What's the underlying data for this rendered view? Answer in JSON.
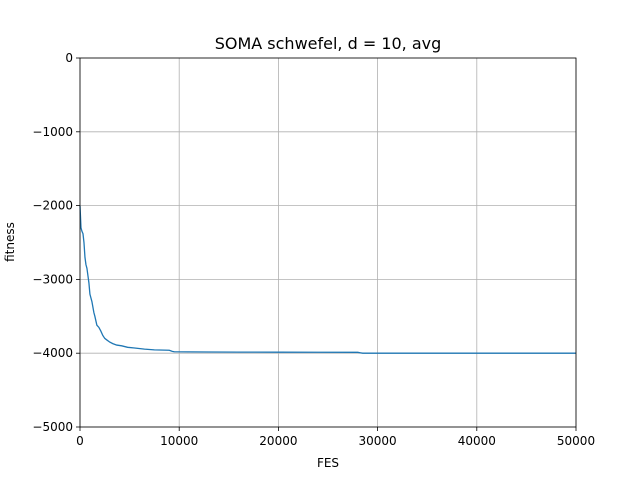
{
  "chart_data": {
    "type": "line",
    "title": "SOMA schwefel, d = 10, avg",
    "xlabel": "FES",
    "ylabel": "fitness",
    "xlim": [
      0,
      50000
    ],
    "ylim": [
      -5000,
      0
    ],
    "xticks": [
      0,
      10000,
      20000,
      30000,
      40000,
      50000
    ],
    "xtick_labels": [
      "0",
      "10000",
      "20000",
      "30000",
      "40000",
      "50000"
    ],
    "yticks": [
      0,
      -1000,
      -2000,
      -3000,
      -4000,
      -5000
    ],
    "ytick_labels": [
      "0",
      "−1000",
      "−2000",
      "−3000",
      "−4000",
      "−5000"
    ],
    "grid": true,
    "color": "#1f77b4",
    "series": [
      {
        "x": [
          0,
          100,
          200,
          300,
          400,
          500,
          600,
          700,
          800,
          900,
          1000,
          1200,
          1400,
          1500,
          1700,
          1900,
          2100,
          2300,
          2500,
          2700,
          3000,
          3300,
          3700,
          4200,
          4800,
          5500,
          6500,
          7500,
          8500,
          9000,
          9300,
          9500,
          11000,
          13000,
          16000,
          20000,
          24000,
          28000,
          28300,
          28500,
          30000,
          35000,
          40000,
          45000,
          50000
        ],
        "y": [
          -2000,
          -2300,
          -2350,
          -2380,
          -2500,
          -2700,
          -2800,
          -2850,
          -2950,
          -3050,
          -3200,
          -3300,
          -3450,
          -3500,
          -3620,
          -3650,
          -3700,
          -3760,
          -3800,
          -3820,
          -3850,
          -3870,
          -3890,
          -3900,
          -3920,
          -3930,
          -3945,
          -3955,
          -3958,
          -3960,
          -3975,
          -3980,
          -3982,
          -3984,
          -3985,
          -3986,
          -3987,
          -3988,
          -3995,
          -4000,
          -4000,
          -4000,
          -4000,
          -4000,
          -4000
        ]
      }
    ]
  }
}
